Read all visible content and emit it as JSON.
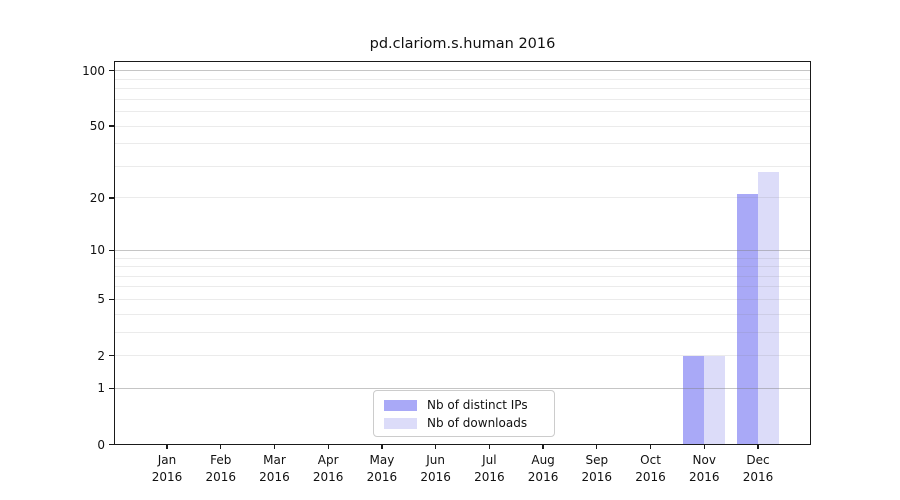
{
  "chart_data": {
    "type": "bar",
    "title": "pd.clariom.s.human 2016",
    "year": "2016",
    "categories": [
      "Jan",
      "Feb",
      "Mar",
      "Apr",
      "May",
      "Jun",
      "Jul",
      "Aug",
      "Sep",
      "Oct",
      "Nov",
      "Dec"
    ],
    "series": [
      {
        "name": "Nb of distinct IPs",
        "color": "#a9a9f7",
        "values": [
          0,
          0,
          0,
          0,
          0,
          0,
          0,
          0,
          0,
          0,
          2,
          21
        ]
      },
      {
        "name": "Nb of downloads",
        "color": "#dcdcf9",
        "values": [
          0,
          0,
          0,
          0,
          0,
          0,
          0,
          0,
          0,
          0,
          2,
          28
        ]
      }
    ],
    "yticks": [
      0,
      1,
      2,
      5,
      10,
      20,
      50,
      100
    ],
    "major_gridlines": [
      1,
      10,
      100
    ],
    "minor_gridlines": [
      3,
      4,
      6,
      7,
      8,
      9,
      30,
      40,
      60,
      70,
      80,
      90
    ],
    "scale": "log1p",
    "ylim": [
      0,
      113
    ],
    "xlabel": "",
    "ylabel": "",
    "grid": true,
    "grid_above_bars": true,
    "legend_position": "bottom-center"
  }
}
